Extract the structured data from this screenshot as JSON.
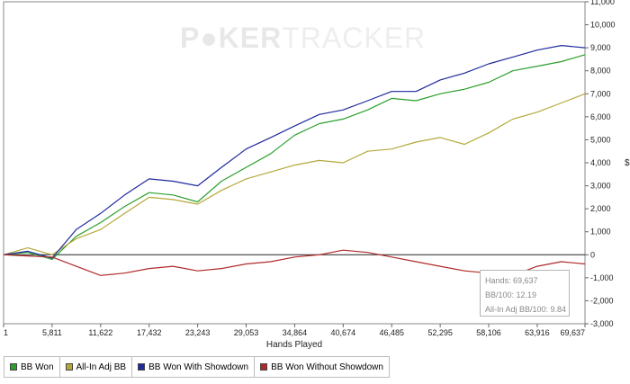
{
  "watermark": {
    "part1": "P",
    "part2": "KER",
    "part3": "TRACKER"
  },
  "chart_data": {
    "type": "line",
    "xlabel": "Hands Played",
    "ylabel": "$",
    "xlim": [
      1,
      69637
    ],
    "ylim": [
      -3000,
      11000
    ],
    "x_ticks": [
      "1",
      "5,811",
      "11,622",
      "17,432",
      "23,243",
      "29,053",
      "34,864",
      "40,674",
      "46,485",
      "52,295",
      "58,106",
      "63,916",
      "69,637"
    ],
    "y_ticks": [
      "-3,000",
      "-2,000",
      "-1,000",
      "0",
      "1,000",
      "2,000",
      "3,000",
      "4,000",
      "5,000",
      "6,000",
      "7,000",
      "8,000",
      "9,000",
      "10,000",
      "11,000"
    ],
    "grid": false,
    "legend_position": "bottom-left",
    "x": [
      1,
      2900,
      5811,
      8700,
      11622,
      14500,
      17432,
      20300,
      23243,
      26100,
      29053,
      32000,
      34864,
      37800,
      40674,
      43600,
      46485,
      49400,
      52295,
      55200,
      58106,
      61000,
      63916,
      66800,
      69637
    ],
    "series": [
      {
        "name": "BB Won",
        "color": "#2ca02c",
        "values": [
          0,
          100,
          -200,
          800,
          1400,
          2100,
          2700,
          2600,
          2300,
          3200,
          3800,
          4400,
          5200,
          5700,
          5900,
          6300,
          6800,
          6700,
          7000,
          7200,
          7500,
          8000,
          8200,
          8400,
          8700
        ]
      },
      {
        "name": "All-In Adj BB",
        "color": "#b5a83a",
        "values": [
          0,
          300,
          0,
          700,
          1100,
          1800,
          2500,
          2400,
          2200,
          2800,
          3300,
          3600,
          3900,
          4100,
          4000,
          4500,
          4600,
          4900,
          5100,
          4800,
          5300,
          5900,
          6200,
          6600,
          7000
        ]
      },
      {
        "name": "BB Won With Showdown",
        "color": "#1f2a9c",
        "values": [
          0,
          150,
          -150,
          1100,
          1800,
          2600,
          3300,
          3200,
          3000,
          3800,
          4600,
          5100,
          5600,
          6100,
          6300,
          6700,
          7100,
          7100,
          7600,
          7900,
          8300,
          8600,
          8900,
          9100,
          9000
        ]
      },
      {
        "name": "BB Won Without Showdown",
        "color": "#b02a2a",
        "values": [
          0,
          -50,
          -100,
          -500,
          -900,
          -800,
          -600,
          -500,
          -700,
          -600,
          -400,
          -300,
          -100,
          0,
          200,
          100,
          -100,
          -300,
          -500,
          -700,
          -800,
          -900,
          -500,
          -300,
          -400
        ]
      }
    ],
    "tooltip": {
      "hands": "Hands: 69,637",
      "bb100": "BB/100: 12.19",
      "allin": "All-In Adj BB/100: 9.84"
    }
  }
}
